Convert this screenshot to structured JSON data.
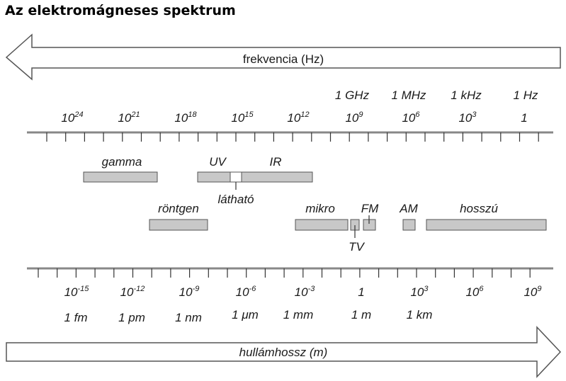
{
  "title": "Az elektromágneses spektrum",
  "frequency_arrow_label": "frekvencia (Hz)",
  "wavelength_arrow_label": "hullámhossz (m)",
  "frequency_units": [
    "1 GHz",
    "1 MHz",
    "1 kHz",
    "1 Hz"
  ],
  "frequency_powers": [
    {
      "base": "10",
      "exp": "24"
    },
    {
      "base": "10",
      "exp": "21"
    },
    {
      "base": "10",
      "exp": "18"
    },
    {
      "base": "10",
      "exp": "15"
    },
    {
      "base": "10",
      "exp": "12"
    },
    {
      "base": "10",
      "exp": "9"
    },
    {
      "base": "10",
      "exp": "6"
    },
    {
      "base": "10",
      "exp": "3"
    },
    {
      "base": "1",
      "exp": ""
    }
  ],
  "wavelength_powers": [
    {
      "base": "10",
      "exp": "-15"
    },
    {
      "base": "10",
      "exp": "-12"
    },
    {
      "base": "10",
      "exp": "-9"
    },
    {
      "base": "10",
      "exp": "-6"
    },
    {
      "base": "10",
      "exp": "-3"
    },
    {
      "base": "1",
      "exp": ""
    },
    {
      "base": "10",
      "exp": "3"
    },
    {
      "base": "10",
      "exp": "6"
    },
    {
      "base": "10",
      "exp": "9"
    }
  ],
  "wavelength_units": [
    "1 fm",
    "1 pm",
    "1 nm",
    "1 μm",
    "1 mm",
    "1 m",
    "1 km"
  ],
  "bands": {
    "gamma": "gamma",
    "uv": "UV",
    "ir": "IR",
    "visible": "látható",
    "xray": "röntgen",
    "micro": "mikro",
    "fm": "FM",
    "am": "AM",
    "long": "hosszú",
    "tv": "TV"
  },
  "colors": {
    "band_fill": "#c8c8c8",
    "stroke": "#555555",
    "text": "#1a1a1a"
  }
}
